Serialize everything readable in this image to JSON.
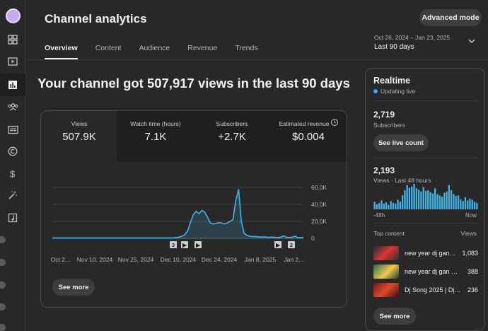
{
  "header": {
    "title": "Channel analytics",
    "advanced_mode_label": "Advanced mode",
    "tabs": [
      {
        "label": "Overview"
      },
      {
        "label": "Content"
      },
      {
        "label": "Audience"
      },
      {
        "label": "Revenue"
      },
      {
        "label": "Trends"
      }
    ],
    "active_tab": "Overview",
    "date_range": "Oct 26, 2024 – Jan 23, 2025",
    "range_label": "Last 90 days"
  },
  "headline": "Your channel got 507,917 views in the last 90 days",
  "metrics": [
    {
      "label": "Views",
      "value": "507.9K",
      "active": true
    },
    {
      "label": "Watch time (hours)",
      "value": "7.1K"
    },
    {
      "label": "Subscribers",
      "value": "+2.7K"
    },
    {
      "label": "Estimated revenue",
      "value": "$0.004",
      "info_icon": "info-icon"
    }
  ],
  "chart_data": {
    "type": "area",
    "title": "",
    "series": [
      {
        "name": "Views",
        "color": "#41b4e6"
      }
    ],
    "x_tick_labels": [
      "Oct 2…",
      "Nov 10, 2024",
      "Nov 25, 2024",
      "Dec 10, 2024",
      "Dec 24, 2024",
      "Jan 8, 2025",
      "Jan 2…"
    ],
    "y_tick_labels": [
      "60.0K",
      "40.0K",
      "20.0K",
      "0"
    ],
    "ylim": [
      0,
      60000
    ],
    "values": [
      500,
      500,
      500,
      500,
      500,
      500,
      500,
      500,
      500,
      500,
      500,
      500,
      500,
      500,
      500,
      500,
      500,
      500,
      500,
      500,
      500,
      500,
      500,
      500,
      500,
      500,
      500,
      500,
      500,
      500,
      500,
      500,
      500,
      500,
      500,
      500,
      500,
      500,
      500,
      500,
      500,
      500,
      500,
      600,
      900,
      1500,
      2500,
      4500,
      9000,
      19000,
      28000,
      32000,
      29000,
      33000,
      31000,
      25000,
      18000,
      17000,
      17500,
      18500,
      18000,
      17000,
      18000,
      20000,
      22000,
      44000,
      58000,
      20000,
      6000,
      3500,
      2500,
      2000,
      2200,
      1800,
      1500,
      1700,
      1400,
      1200,
      1500,
      1100,
      1000,
      1400,
      3000,
      1200,
      1000,
      1200,
      2500,
      1000,
      900,
      1000
    ],
    "markers": [
      "3",
      "▶",
      "▶",
      "▶",
      "2"
    ],
    "grid": true
  },
  "card_see_more": "See more",
  "realtime": {
    "title": "Realtime",
    "status": "Updating live",
    "subscribers_value": "2,719",
    "subscribers_label": "Subscribers",
    "see_live_count_label": "See live count",
    "views_value": "2,193",
    "views_label": "Views · Last 48 hours",
    "bars": [
      12,
      8,
      10,
      14,
      9,
      11,
      7,
      13,
      10,
      9,
      15,
      12,
      22,
      30,
      38,
      34,
      36,
      40,
      33,
      31,
      28,
      35,
      29,
      30,
      27,
      25,
      33,
      24,
      22,
      20,
      26,
      28,
      38,
      30,
      24,
      21,
      22,
      16,
      13,
      19,
      14,
      17,
      15,
      12,
      10
    ],
    "axis_start": "-48h",
    "axis_end": "Now",
    "top_content_label": "Top content",
    "top_content_views_label": "Views",
    "top_content": [
      {
        "title": "new year dj gan…",
        "views": "1,083"
      },
      {
        "title": "new year dj gan 2…",
        "views": "388"
      },
      {
        "title": "Dj Song 2025 | Dj…",
        "views": "236"
      }
    ],
    "see_more_label": "See more"
  }
}
